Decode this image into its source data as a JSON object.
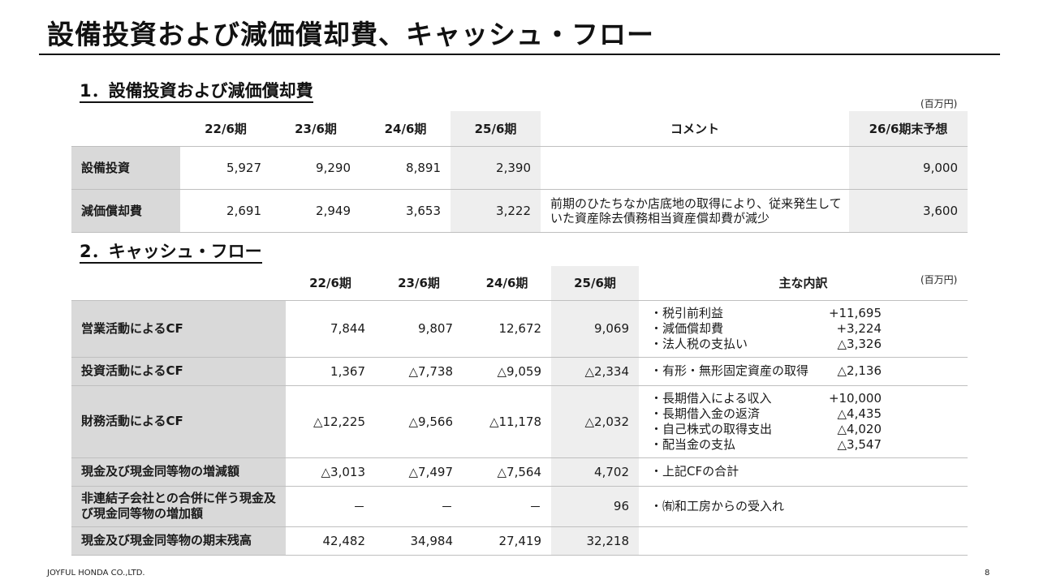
{
  "page_title": "設備投資および減価償却費、キャッシュ・フロー",
  "section1": {
    "heading": "1．設備投資および減価償却費",
    "unit": "(百万円)",
    "headers": [
      "",
      "22/6期",
      "23/6期",
      "24/6期",
      "25/6期",
      "コメント",
      "26/6期末予想"
    ],
    "rows": [
      {
        "label": "設備投資",
        "values": [
          "5,927",
          "9,290",
          "8,891",
          "2,390"
        ],
        "comment": "",
        "forecast": "9,000"
      },
      {
        "label": "減価償却費",
        "values": [
          "2,691",
          "2,949",
          "3,653",
          "3,222"
        ],
        "comment": "前期のひたちなか店底地の取得により、従来発生していた資産除去債務相当資産償却費が減少",
        "forecast": "3,600"
      }
    ]
  },
  "section2": {
    "heading": "2．キャッシュ・フロー",
    "unit": "(百万円)",
    "headers": [
      "",
      "22/6期",
      "23/6期",
      "24/6期",
      "25/6期",
      "主な内訳"
    ],
    "rows": [
      {
        "label": "営業活動によるCF",
        "values": [
          "7,844",
          "9,807",
          "12,672",
          "9,069"
        ],
        "breakdown": [
          {
            "item": "・税引前利益",
            "amount": "+11,695"
          },
          {
            "item": "・減価償却費",
            "amount": "+3,224"
          },
          {
            "item": "・法人税の支払い",
            "amount": "△3,326"
          }
        ]
      },
      {
        "label": "投資活動によるCF",
        "values": [
          "1,367",
          "△7,738",
          "△9,059",
          "△2,334"
        ],
        "breakdown": [
          {
            "item": "・有形・無形固定資産の取得",
            "amount": "△2,136"
          }
        ]
      },
      {
        "label": "財務活動によるCF",
        "values": [
          "△12,225",
          "△9,566",
          "△11,178",
          "△2,032"
        ],
        "breakdown": [
          {
            "item": "・長期借入による収入",
            "amount": "+10,000"
          },
          {
            "item": "・長期借入金の返済",
            "amount": "△4,435"
          },
          {
            "item": "・自己株式の取得支出",
            "amount": "△4,020"
          },
          {
            "item": "・配当金の支払",
            "amount": "△3,547"
          }
        ]
      },
      {
        "label": "現金及び現金同等物の増減額",
        "values": [
          "△3,013",
          "△7,497",
          "△7,564",
          "4,702"
        ],
        "breakdown": [
          {
            "item": "・上記CFの合計",
            "amount": ""
          }
        ]
      },
      {
        "label": "非連結子会社との合併に伴う現金及び現金同等物の増加額",
        "values": [
          "－",
          "－",
          "－",
          "96"
        ],
        "breakdown": [
          {
            "item": "・㈲和工房からの受入れ",
            "amount": ""
          }
        ]
      },
      {
        "label": "現金及び現金同等物の期末残高",
        "values": [
          "42,482",
          "34,984",
          "27,419",
          "32,218"
        ],
        "breakdown": []
      }
    ]
  },
  "footer": {
    "company": "JOYFUL HONDA CO.,LTD.",
    "page_number": "8"
  }
}
